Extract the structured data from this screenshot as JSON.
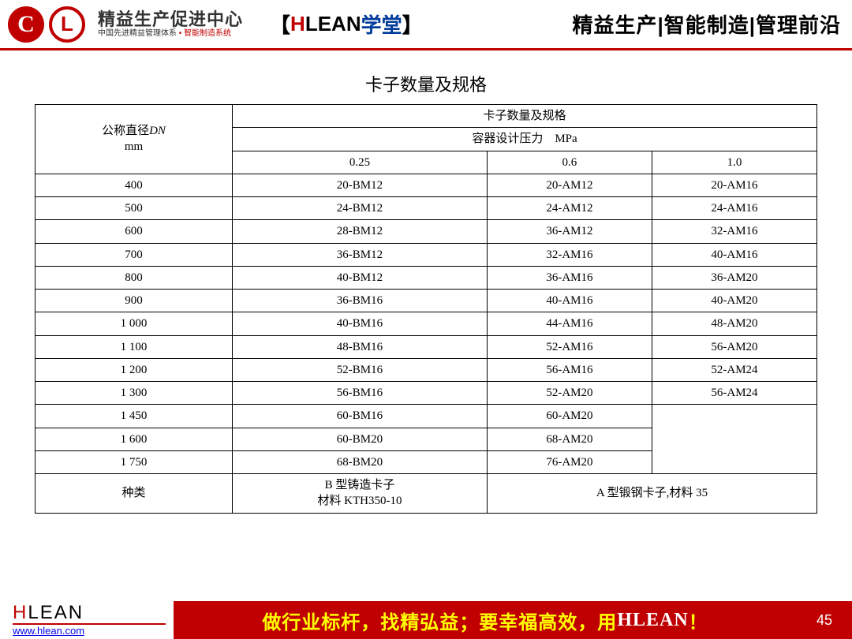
{
  "header": {
    "org_title": "精益生产促进中心",
    "org_sub_prefix": "中国先进精益管理体系",
    "org_sub_dot": " • ",
    "org_sub_suffix": "智能制造系统",
    "bracket_open": "【",
    "bracket_h": "H",
    "bracket_lean": "LEAN",
    "bracket_xt": "学堂",
    "bracket_close": "】",
    "right_tags": "精益生产|智能制造|管理前沿"
  },
  "title": "卡子数量及规格",
  "table": {
    "col_dn_line1": "公称直径",
    "col_dn_italic": "DN",
    "col_dn_line2": "mm",
    "merge_header": "卡子数量及规格",
    "sub_header": "容器设计压力　MPa",
    "pressure_cols": [
      "0.25",
      "0.6",
      "1.0"
    ],
    "rows": [
      {
        "dn": "400",
        "c": [
          "20-BM12",
          "20-AM12",
          "20-AM16"
        ]
      },
      {
        "dn": "500",
        "c": [
          "24-BM12",
          "24-AM12",
          "24-AM16"
        ]
      },
      {
        "dn": "600",
        "c": [
          "28-BM12",
          "36-AM12",
          "32-AM16"
        ]
      },
      {
        "dn": "700",
        "c": [
          "36-BM12",
          "32-AM16",
          "40-AM16"
        ]
      },
      {
        "dn": "800",
        "c": [
          "40-BM12",
          "36-AM16",
          "36-AM20"
        ]
      },
      {
        "dn": "900",
        "c": [
          "36-BM16",
          "40-AM16",
          "40-AM20"
        ]
      },
      {
        "dn": "1 000",
        "c": [
          "40-BM16",
          "44-AM16",
          "48-AM20"
        ]
      },
      {
        "dn": "1 100",
        "c": [
          "48-BM16",
          "52-AM16",
          "56-AM20"
        ]
      },
      {
        "dn": "1 200",
        "c": [
          "52-BM16",
          "56-AM16",
          "52-AM24"
        ]
      },
      {
        "dn": "1 300",
        "c": [
          "56-BM16",
          "52-AM20",
          "56-AM24"
        ]
      },
      {
        "dn": "1 450",
        "c": [
          "60-BM16",
          "60-AM20",
          ""
        ]
      },
      {
        "dn": "1 600",
        "c": [
          "60-BM20",
          "68-AM20",
          ""
        ]
      },
      {
        "dn": "1 750",
        "c": [
          "68-BM20",
          "76-AM20",
          ""
        ]
      }
    ],
    "footer_label": "种类",
    "footer_b_line1": "B 型铸造卡子",
    "footer_b_line2": "材料 KTH350-10",
    "footer_a": "A 型锻钢卡子,材料 35"
  },
  "footer": {
    "brand_h": "H",
    "brand_rest": "LEAN",
    "url": "www.hlean.com",
    "slogan_part1": "做行业标杆，找精弘益；要幸福高效，用",
    "slogan_part2": "HLEAN",
    "slogan_part3": "！",
    "page": "45"
  },
  "style": {
    "accent": "#c00000",
    "link_blue": "#0000ee",
    "slogan_yellow": "#ffff00",
    "deep_blue": "#003b9b"
  }
}
